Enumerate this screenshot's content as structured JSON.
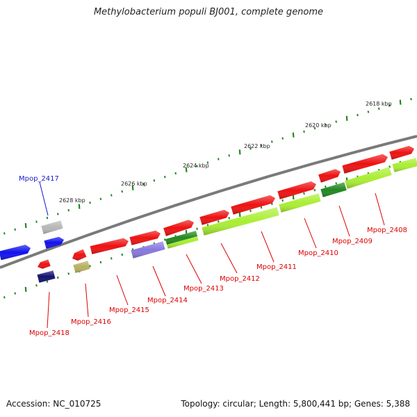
{
  "title": "Methylobacterium populi BJ001, complete genome",
  "footer": {
    "accession": "Accession: NC_010725",
    "summary": "Topology: circular; Length: 5,800,441 bp; Genes: 5,388"
  },
  "colors": {
    "background": "#ffffff",
    "backbone": "#7a7a7a",
    "tick": "#1f8a1f",
    "label_red": "#dd0000",
    "label_blue": "#1a1acc",
    "cds_red": "#ee1111",
    "cds_lime": "#aaee33",
    "cds_green": "#228822",
    "cds_blue": "#1111ee",
    "cds_navy": "#121270",
    "cds_gray": "#b8b8b8",
    "cds_lavender": "#8877dd",
    "cds_olive": "#b8b060"
  },
  "scale": {
    "unit": "kbp",
    "tick_labels": [
      "2618 kbp",
      "2620 kbp",
      "2622 kbp",
      "2624 kbp",
      "2626 kbp",
      "2628 kbp"
    ]
  },
  "genes": [
    {
      "id": "Mpop_2408",
      "label": "Mpop_2408",
      "color": "cds_red"
    },
    {
      "id": "Mpop_2409",
      "label": "Mpop_2409",
      "color": "cds_red"
    },
    {
      "id": "Mpop_2410",
      "label": "Mpop_2410",
      "color": "cds_red"
    },
    {
      "id": "Mpop_2411",
      "label": "Mpop_2411",
      "color": "cds_red"
    },
    {
      "id": "Mpop_2412",
      "label": "Mpop_2412",
      "color": "cds_red"
    },
    {
      "id": "Mpop_2413",
      "label": "Mpop_2413",
      "color": "cds_red"
    },
    {
      "id": "Mpop_2414",
      "label": "Mpop_2414",
      "color": "cds_red"
    },
    {
      "id": "Mpop_2415",
      "label": "Mpop_2415",
      "color": "cds_red"
    },
    {
      "id": "Mpop_2416",
      "label": "Mpop_2416",
      "color": "cds_red"
    },
    {
      "id": "Mpop_2417",
      "label": "Mpop_2417",
      "color": "cds_blue"
    },
    {
      "id": "Mpop_2418",
      "label": "Mpop_2418",
      "color": "cds_red"
    }
  ]
}
